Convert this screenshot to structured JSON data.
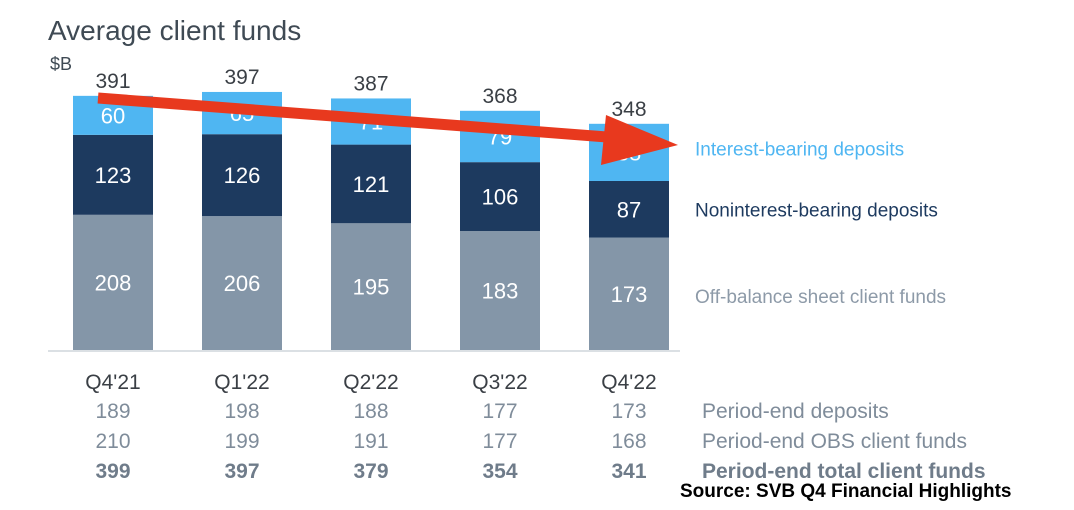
{
  "chart_data": {
    "type": "bar",
    "stacked": true,
    "title": "Average client funds",
    "unit": "$B",
    "categories": [
      "Q4'21",
      "Q1'22",
      "Q2'22",
      "Q3'22",
      "Q4'22"
    ],
    "series": [
      {
        "name": "Off-balance sheet client funds",
        "values": [
          208,
          206,
          195,
          183,
          173
        ],
        "color": "#8496a8",
        "label_color": "#ffffff"
      },
      {
        "name": "Noninterest-bearing deposits",
        "values": [
          123,
          126,
          121,
          106,
          87
        ],
        "color": "#1d3a5f",
        "label_color": "#ffffff"
      },
      {
        "name": "Interest-bearing deposits",
        "values": [
          60,
          65,
          71,
          79,
          88
        ],
        "color": "#4fb6f2",
        "label_color": "#ffffff"
      }
    ],
    "totals": [
      391,
      397,
      387,
      368,
      348
    ],
    "legend_colors": [
      "#8d9aa8",
      "#1d3a5f",
      "#4fb6f2"
    ],
    "annotation": {
      "type": "arrow",
      "color": "#e8391e",
      "direction": "downward trend"
    },
    "ylim": [
      0,
      430
    ],
    "table": {
      "rows": [
        {
          "label": "Period-end deposits",
          "values": [
            189,
            198,
            188,
            177,
            173
          ],
          "bold": false
        },
        {
          "label": "Period-end OBS client funds",
          "values": [
            210,
            199,
            191,
            177,
            168
          ],
          "bold": false
        },
        {
          "label": "Period-end total client funds",
          "values": [
            399,
            397,
            379,
            354,
            341
          ],
          "bold": true
        }
      ],
      "color": "#7f8c9a",
      "bold_color": "#6f7c8a"
    }
  },
  "source": "Source: SVB Q4 Financial Highlights",
  "colors": {
    "axis_line": "#cfd5db",
    "category_text": "#3a3f45",
    "total_text": "#3a3f45"
  }
}
